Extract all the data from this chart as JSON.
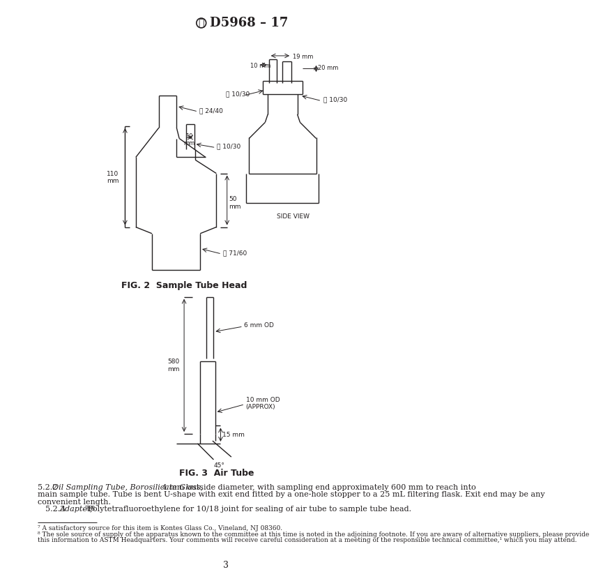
{
  "title": "D5968 – 17",
  "fig2_caption": "FIG. 2  Sample Tube Head",
  "fig3_caption": "FIG. 3  Air Tube",
  "page_number": "3",
  "body_text_1a": "    5.2.2  ",
  "body_text_1b": "Oil Sampling Tube, Borosilicate Glass,",
  "body_text_1c": " 4 mm outside diameter, with sampling end approximately 600 mm to reach into",
  "body_text_2": "main sample tube. Tube is bent U-shape with exit end fitted by a one-hole stopper to a 25 mL filtering flask. Exit end may be any",
  "body_text_3": "convenient length.",
  "body_text_4a": "    5.2.3  ",
  "body_text_4b": "Adapter,",
  "body_text_4c": " 7,8 Polytetrafluoroethylene for 10/18 joint for sealing of air tube to sample tube head.",
  "footnote_7": "⁷ A satisfactory source for this item is Kontes Glass Co., Vineland, NJ 08360.",
  "footnote_8a": "⁸ The sole source of supply of the apparatus known to the committee at this time is noted in the adjoining footnote. If you are aware of alternative suppliers, please provide",
  "footnote_8b": "this information to ASTM Headquarters. Your comments will receive careful consideration at a meeting of the responsible technical committee,¹ which you may attend.",
  "bg_color": "#ffffff",
  "line_color": "#231f20",
  "text_color": "#231f20"
}
